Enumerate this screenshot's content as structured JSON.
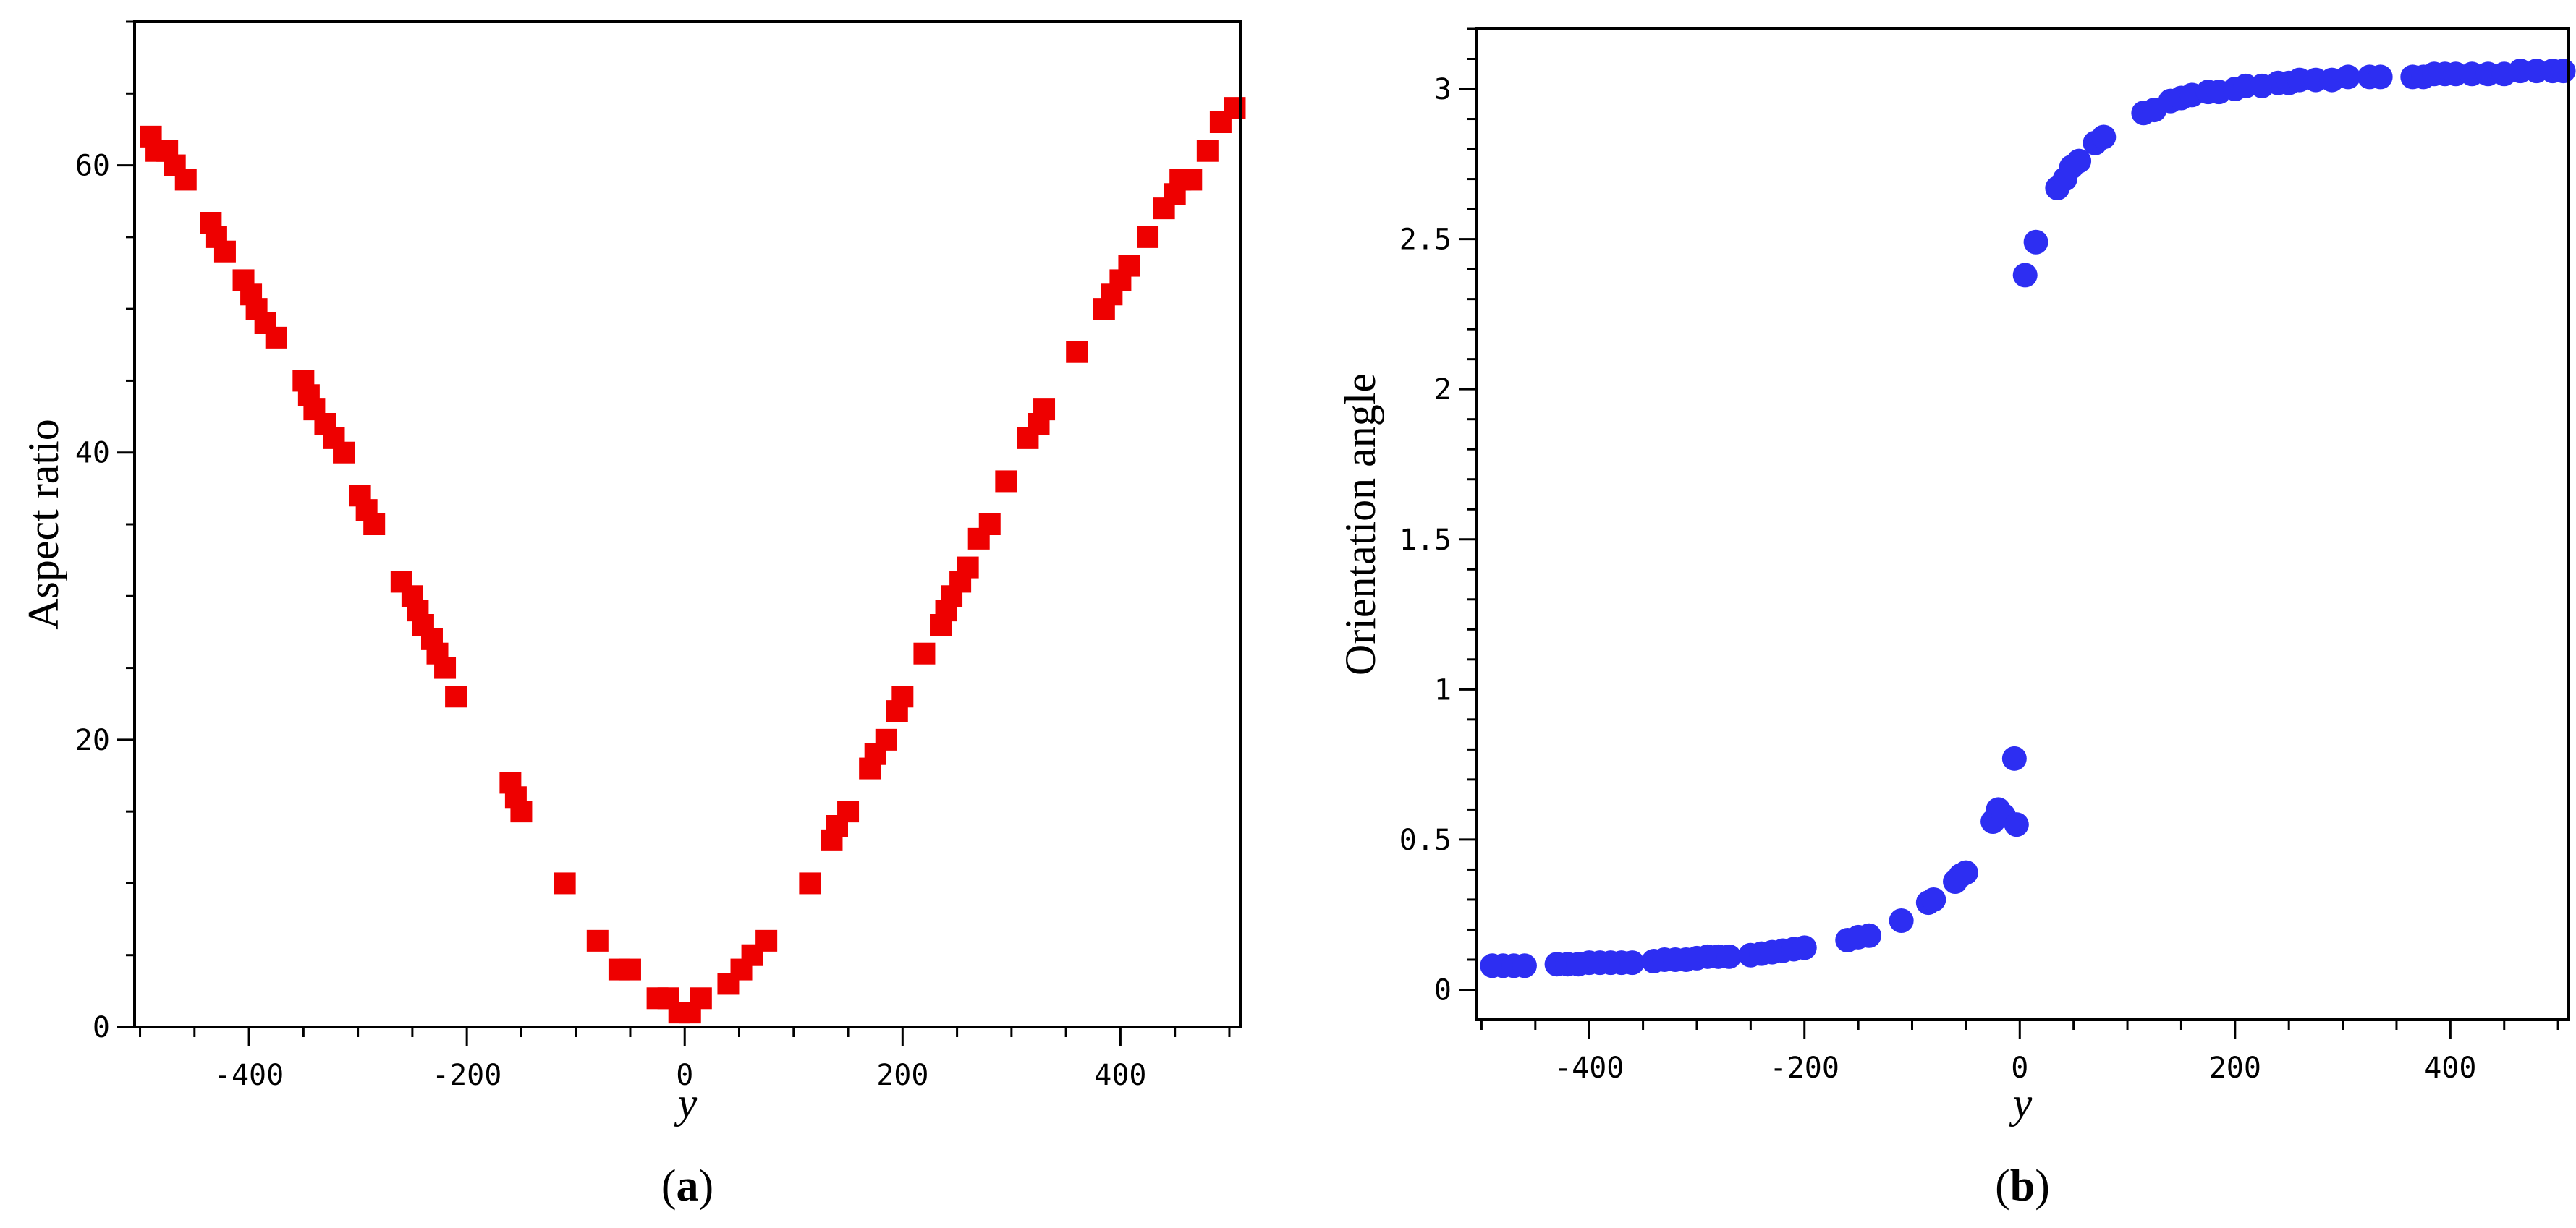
{
  "colors": {
    "series_a": "#ee0000",
    "series_b": "#2d2ef2"
  },
  "chart_data": [
    {
      "type": "scatter",
      "panel_label": "a",
      "xlabel": "y",
      "ylabel": "Aspect ratio",
      "xlim": [
        -505,
        510
      ],
      "ylim": [
        0,
        70
      ],
      "xticks": [
        -400,
        -200,
        0,
        200,
        400
      ],
      "yticks": [
        0,
        20,
        40,
        60
      ],
      "marker": "square",
      "grid": false,
      "series": [
        {
          "color_key": "series_a",
          "points": [
            [
              -490,
              62
            ],
            [
              -485,
              61
            ],
            [
              -475,
              61
            ],
            [
              -468,
              60
            ],
            [
              -458,
              59
            ],
            [
              -435,
              56
            ],
            [
              -430,
              55
            ],
            [
              -422,
              54
            ],
            [
              -405,
              52
            ],
            [
              -398,
              51
            ],
            [
              -393,
              50
            ],
            [
              -385,
              49
            ],
            [
              -375,
              48
            ],
            [
              -350,
              45
            ],
            [
              -345,
              44
            ],
            [
              -340,
              43
            ],
            [
              -330,
              42
            ],
            [
              -322,
              41
            ],
            [
              -313,
              40
            ],
            [
              -298,
              37
            ],
            [
              -292,
              36
            ],
            [
              -285,
              35
            ],
            [
              -260,
              31
            ],
            [
              -250,
              30
            ],
            [
              -245,
              29
            ],
            [
              -240,
              28
            ],
            [
              -232,
              27
            ],
            [
              -227,
              26
            ],
            [
              -220,
              25
            ],
            [
              -210,
              23
            ],
            [
              -160,
              17
            ],
            [
              -155,
              16
            ],
            [
              -150,
              15
            ],
            [
              -110,
              10
            ],
            [
              -80,
              6
            ],
            [
              -60,
              4
            ],
            [
              -50,
              4
            ],
            [
              -25,
              2
            ],
            [
              -15,
              2
            ],
            [
              -5,
              1
            ],
            [
              5,
              1
            ],
            [
              15,
              2
            ],
            [
              40,
              3
            ],
            [
              52,
              4
            ],
            [
              62,
              5
            ],
            [
              75,
              6
            ],
            [
              115,
              10
            ],
            [
              135,
              13
            ],
            [
              140,
              14
            ],
            [
              150,
              15
            ],
            [
              170,
              18
            ],
            [
              175,
              19
            ],
            [
              185,
              20
            ],
            [
              195,
              22
            ],
            [
              200,
              23
            ],
            [
              220,
              26
            ],
            [
              235,
              28
            ],
            [
              240,
              29
            ],
            [
              245,
              30
            ],
            [
              253,
              31
            ],
            [
              260,
              32
            ],
            [
              270,
              34
            ],
            [
              280,
              35
            ],
            [
              295,
              38
            ],
            [
              315,
              41
            ],
            [
              325,
              42
            ],
            [
              330,
              43
            ],
            [
              360,
              47
            ],
            [
              385,
              50
            ],
            [
              392,
              51
            ],
            [
              400,
              52
            ],
            [
              408,
              53
            ],
            [
              425,
              55
            ],
            [
              440,
              57
            ],
            [
              450,
              58
            ],
            [
              455,
              59
            ],
            [
              465,
              59
            ],
            [
              480,
              61
            ],
            [
              492,
              63
            ],
            [
              505,
              64
            ]
          ]
        }
      ]
    },
    {
      "type": "scatter",
      "panel_label": "b",
      "xlabel": "y",
      "ylabel": "Orientation angle",
      "xlim": [
        -505,
        510
      ],
      "ylim": [
        -0.1,
        3.2
      ],
      "xticks": [
        -400,
        -200,
        0,
        200,
        400
      ],
      "yticks": [
        0,
        0.5,
        1,
        1.5,
        2,
        2.5,
        3
      ],
      "marker": "circle",
      "grid": false,
      "series": [
        {
          "color_key": "series_b",
          "points": [
            [
              -490,
              0.08
            ],
            [
              -480,
              0.08
            ],
            [
              -470,
              0.08
            ],
            [
              -460,
              0.08
            ],
            [
              -430,
              0.085
            ],
            [
              -420,
              0.085
            ],
            [
              -410,
              0.085
            ],
            [
              -400,
              0.09
            ],
            [
              -390,
              0.09
            ],
            [
              -380,
              0.09
            ],
            [
              -370,
              0.09
            ],
            [
              -360,
              0.09
            ],
            [
              -340,
              0.095
            ],
            [
              -330,
              0.1
            ],
            [
              -320,
              0.1
            ],
            [
              -310,
              0.1
            ],
            [
              -300,
              0.105
            ],
            [
              -290,
              0.11
            ],
            [
              -280,
              0.11
            ],
            [
              -270,
              0.11
            ],
            [
              -250,
              0.115
            ],
            [
              -240,
              0.12
            ],
            [
              -230,
              0.125
            ],
            [
              -220,
              0.13
            ],
            [
              -210,
              0.135
            ],
            [
              -200,
              0.14
            ],
            [
              -160,
              0.165
            ],
            [
              -150,
              0.175
            ],
            [
              -140,
              0.18
            ],
            [
              -110,
              0.23
            ],
            [
              -85,
              0.29
            ],
            [
              -80,
              0.3
            ],
            [
              -60,
              0.36
            ],
            [
              -55,
              0.38
            ],
            [
              -50,
              0.39
            ],
            [
              -25,
              0.56
            ],
            [
              -20,
              0.6
            ],
            [
              -15,
              0.58
            ],
            [
              -3,
              0.55
            ],
            [
              -5,
              0.77
            ],
            [
              5,
              2.38
            ],
            [
              15,
              2.49
            ],
            [
              35,
              2.67
            ],
            [
              42,
              2.7
            ],
            [
              48,
              2.74
            ],
            [
              55,
              2.76
            ],
            [
              70,
              2.82
            ],
            [
              78,
              2.84
            ],
            [
              115,
              2.92
            ],
            [
              125,
              2.93
            ],
            [
              140,
              2.96
            ],
            [
              150,
              2.97
            ],
            [
              160,
              2.98
            ],
            [
              175,
              2.99
            ],
            [
              185,
              2.99
            ],
            [
              200,
              3.0
            ],
            [
              210,
              3.01
            ],
            [
              225,
              3.01
            ],
            [
              240,
              3.02
            ],
            [
              250,
              3.02
            ],
            [
              260,
              3.03
            ],
            [
              275,
              3.03
            ],
            [
              290,
              3.03
            ],
            [
              305,
              3.04
            ],
            [
              325,
              3.04
            ],
            [
              335,
              3.04
            ],
            [
              365,
              3.04
            ],
            [
              375,
              3.04
            ],
            [
              385,
              3.05
            ],
            [
              395,
              3.05
            ],
            [
              405,
              3.05
            ],
            [
              420,
              3.05
            ],
            [
              435,
              3.05
            ],
            [
              450,
              3.05
            ],
            [
              465,
              3.06
            ],
            [
              480,
              3.06
            ],
            [
              495,
              3.06
            ],
            [
              505,
              3.06
            ]
          ]
        }
      ]
    }
  ]
}
